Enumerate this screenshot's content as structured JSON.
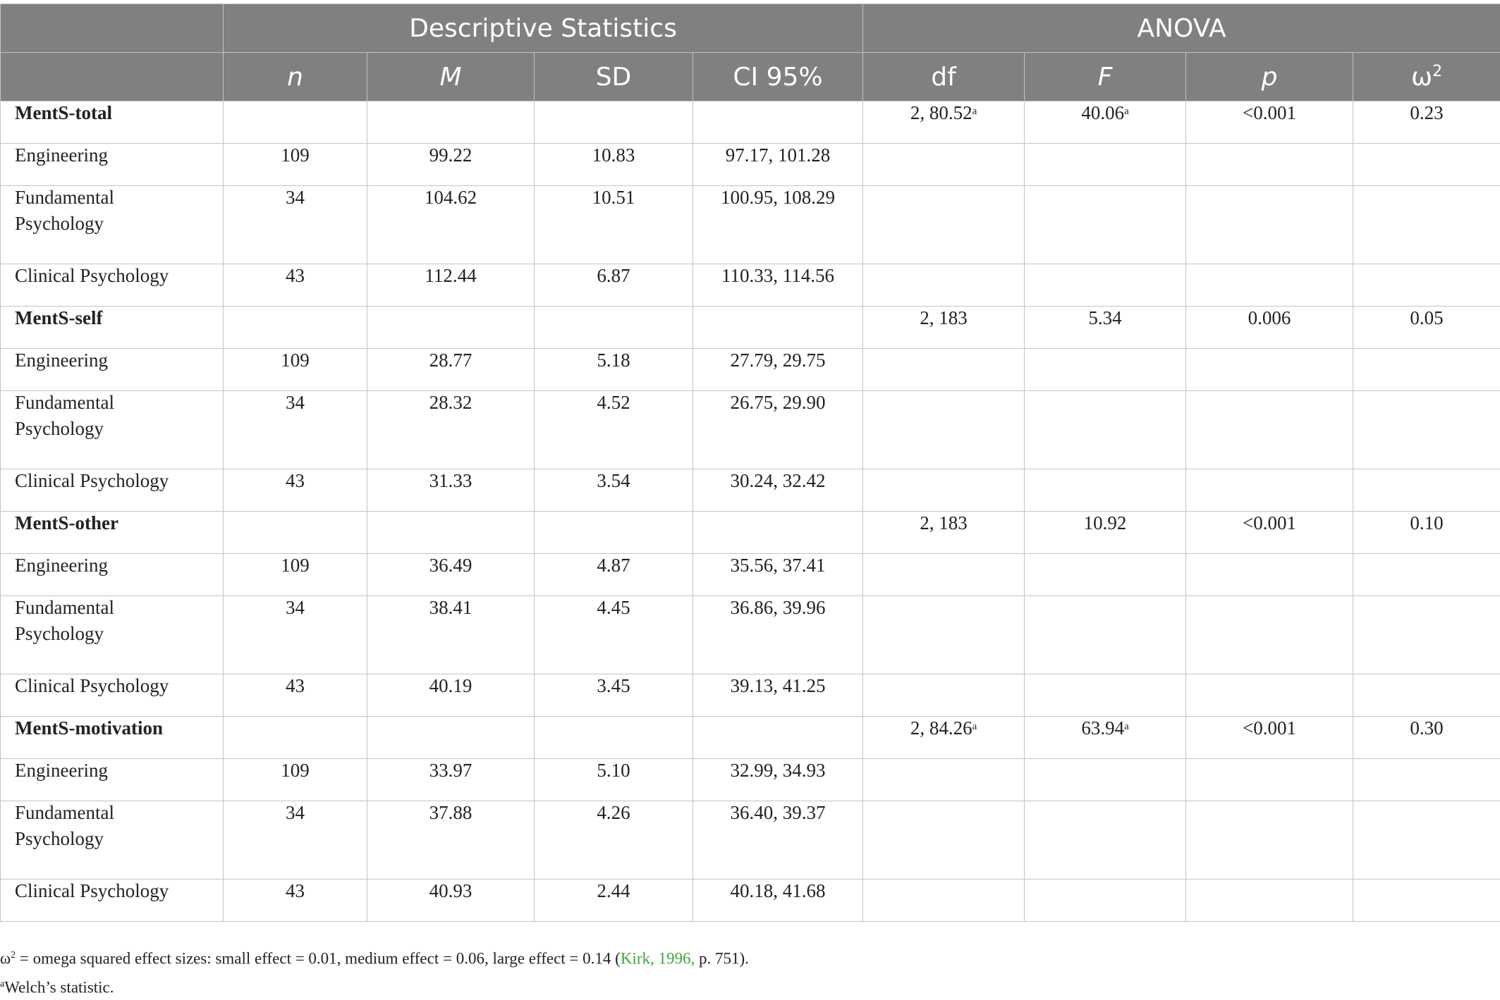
{
  "header": {
    "group_descriptive": "Descriptive Statistics",
    "group_anova": "ANOVA",
    "columns": [
      "n",
      "M",
      "SD",
      "CI 95%",
      "df",
      "F",
      "p",
      "ω",
      "2"
    ]
  },
  "rows": [
    {
      "type": "head",
      "label": "MentS-total",
      "n": "",
      "m": "",
      "sd": "",
      "ci": "",
      "df": "2, 80.52",
      "df_sup": "a",
      "f": "40.06",
      "f_sup": "a",
      "p": "<0.001",
      "w2": "0.23"
    },
    {
      "type": "row",
      "label": "Engineering",
      "n": "109",
      "m": "99.22",
      "sd": "10.83",
      "ci": "97.17, 101.28"
    },
    {
      "type": "tall",
      "label1": "Fundamental",
      "label2": "Psychology",
      "n": "34",
      "m": "104.62",
      "sd": "10.51",
      "ci": "100.95, 108.29"
    },
    {
      "type": "row",
      "label": "Clinical Psychology",
      "n": "43",
      "m": "112.44",
      "sd": "6.87",
      "ci": "110.33, 114.56"
    },
    {
      "type": "head",
      "label": "MentS-self",
      "n": "",
      "m": "",
      "sd": "",
      "ci": "",
      "df": "2, 183",
      "df_sup": "",
      "f": "5.34",
      "f_sup": "",
      "p": "0.006",
      "w2": "0.05"
    },
    {
      "type": "row",
      "label": "Engineering",
      "n": "109",
      "m": "28.77",
      "sd": "5.18",
      "ci": "27.79, 29.75"
    },
    {
      "type": "tall",
      "label1": "Fundamental",
      "label2": "Psychology",
      "n": "34",
      "m": "28.32",
      "sd": "4.52",
      "ci": "26.75, 29.90"
    },
    {
      "type": "row",
      "label": "Clinical Psychology",
      "n": "43",
      "m": "31.33",
      "sd": "3.54",
      "ci": "30.24, 32.42"
    },
    {
      "type": "head",
      "label": "MentS-other",
      "n": "",
      "m": "",
      "sd": "",
      "ci": "",
      "df": "2, 183",
      "df_sup": "",
      "f": "10.92",
      "f_sup": "",
      "p": "<0.001",
      "w2": "0.10"
    },
    {
      "type": "row",
      "label": "Engineering",
      "n": "109",
      "m": "36.49",
      "sd": "4.87",
      "ci": "35.56, 37.41"
    },
    {
      "type": "tall",
      "label1": "Fundamental",
      "label2": "Psychology",
      "n": "34",
      "m": "38.41",
      "sd": "4.45",
      "ci": "36.86, 39.96"
    },
    {
      "type": "row",
      "label": "Clinical Psychology",
      "n": "43",
      "m": "40.19",
      "sd": "3.45",
      "ci": "39.13, 41.25"
    },
    {
      "type": "head",
      "label": "MentS-motivation",
      "n": "",
      "m": "",
      "sd": "",
      "ci": "",
      "df": "2, 84.26",
      "df_sup": "a",
      "f": "63.94",
      "f_sup": "a",
      "p": "<0.001",
      "w2": "0.30"
    },
    {
      "type": "row",
      "label": "Engineering",
      "n": "109",
      "m": "33.97",
      "sd": "5.10",
      "ci": "32.99, 34.93"
    },
    {
      "type": "tall",
      "label1": "Fundamental",
      "label2": "Psychology",
      "n": "34",
      "m": "37.88",
      "sd": "4.26",
      "ci": "36.40, 39.37"
    },
    {
      "type": "row",
      "label": "Clinical Psychology",
      "n": "43",
      "m": "40.93",
      "sd": "2.44",
      "ci": "40.18, 41.68"
    }
  ],
  "notes": {
    "line1_prefix": "ω",
    "line1_sup": "2",
    "line1_text": " = omega squared effect sizes: small effect = 0.01, medium effect = 0.06, large effect = 0.14 (",
    "line1_cite": "Kirk, 1996,",
    "line1_suffix": " p. 751).",
    "line2_sup": "a",
    "line2_text": "Welch’s statistic."
  }
}
